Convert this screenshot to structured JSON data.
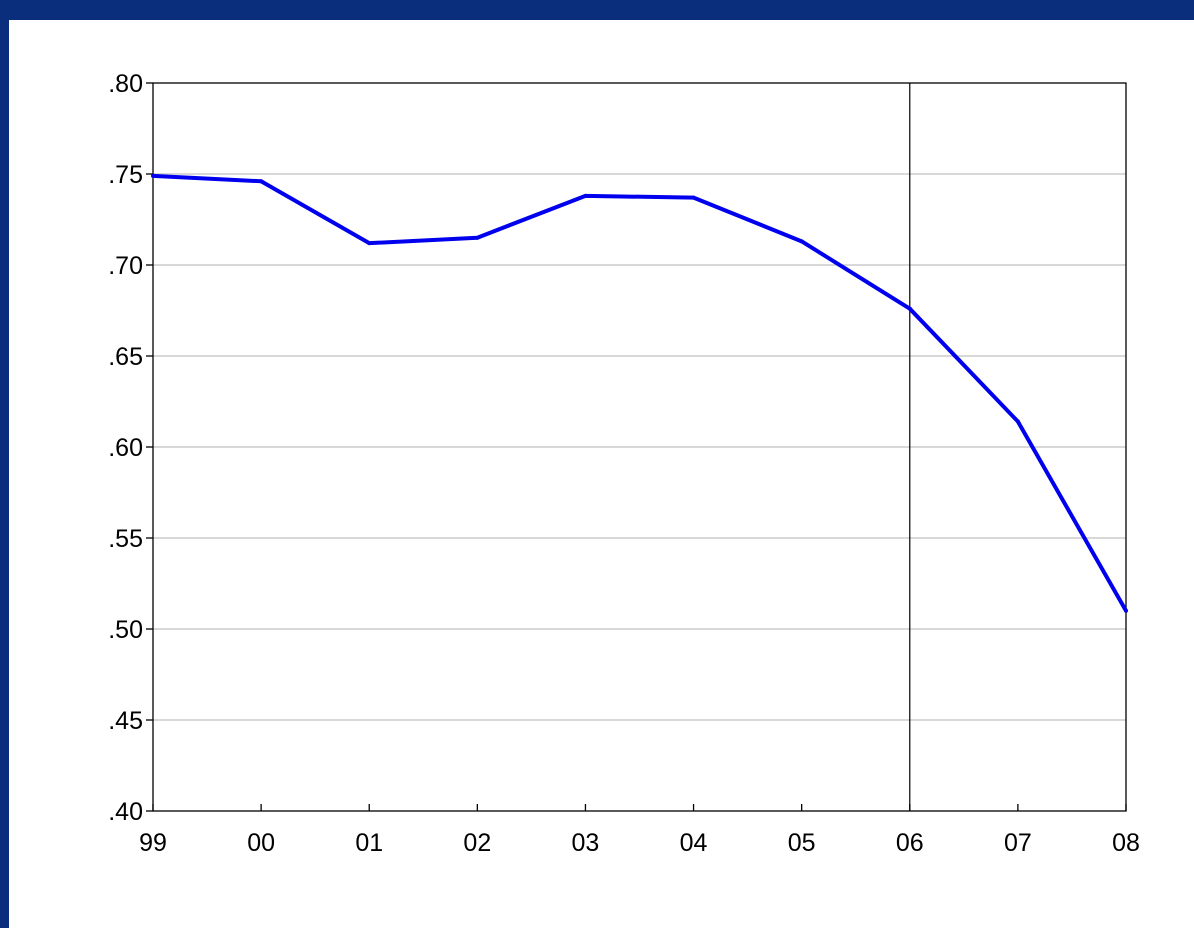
{
  "chart_data": {
    "type": "line",
    "categories": [
      "99",
      "00",
      "01",
      "02",
      "03",
      "04",
      "05",
      "06",
      "07",
      "08"
    ],
    "series": [
      {
        "values": [
          0.749,
          0.746,
          0.712,
          0.715,
          0.738,
          0.737,
          0.713,
          0.676,
          0.614,
          0.51
        ]
      }
    ],
    "ylim": [
      0.4,
      0.8
    ],
    "yticks": [
      ".40",
      ".45",
      ".50",
      ".55",
      ".60",
      ".65",
      ".70",
      ".75",
      ".80"
    ],
    "ytick_values": [
      0.4,
      0.45,
      0.5,
      0.55,
      0.6,
      0.65,
      0.7,
      0.75,
      0.8
    ],
    "vertical_marker_category": "06",
    "grid": "horizontal",
    "line_color": "#0000ee",
    "grid_color": "#cccccc",
    "frame_color": "#0a2e7c"
  }
}
